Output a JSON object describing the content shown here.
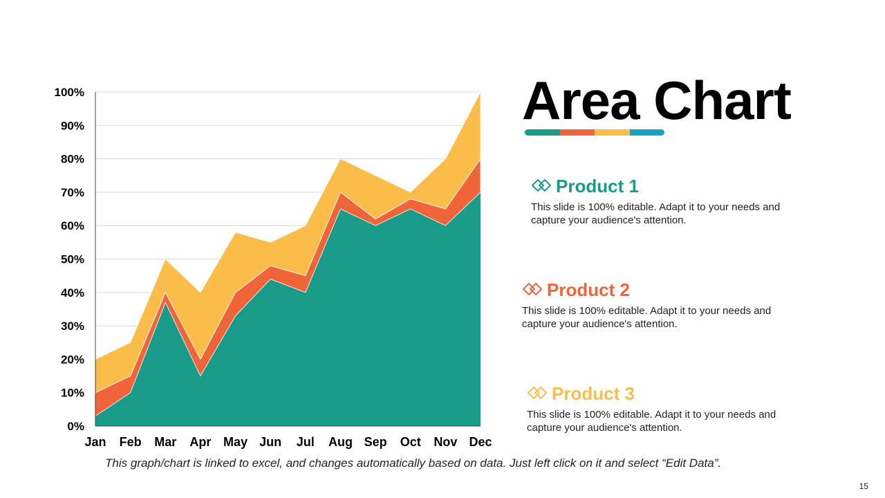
{
  "title": "Area Chart",
  "title_bar_colors": [
    "#1a9b89",
    "#f0643a",
    "#fbbd4a",
    "#15a3c1"
  ],
  "products": [
    {
      "name": "Product 1",
      "color": "#1a9b89",
      "icon": "diamond-pair-icon",
      "desc": "This slide is 100% editable. Adapt it to your needs and capture your audience's attention."
    },
    {
      "name": "Product 2",
      "color": "#f0643a",
      "icon": "diamond-pair-icon",
      "desc": "This slide is 100% editable. Adapt it to your needs and capture your audience's attention."
    },
    {
      "name": "Product 3",
      "color": "#fbbd4a",
      "icon": "diamond-pair-icon",
      "desc": "This slide is 100% editable. Adapt it to your needs and capture your audience's attention."
    }
  ],
  "note": "This graph/chart is linked to excel, and changes automatically based on data. Just left click on it and select “Edit Data”.",
  "page_number": "15",
  "chart_data": {
    "type": "area",
    "stacked": true,
    "categories": [
      "Jan",
      "Feb",
      "Mar",
      "Apr",
      "May",
      "Jun",
      "Jul",
      "Aug",
      "Sep",
      "Oct",
      "Nov",
      "Dec"
    ],
    "series": [
      {
        "name": "Product 1",
        "color": "#1a9b89",
        "values": [
          3,
          10,
          37,
          15,
          33,
          44,
          40,
          65,
          60,
          65,
          60,
          70
        ]
      },
      {
        "name": "Product 2",
        "color": "#f0643a",
        "values": [
          7,
          5,
          3,
          5,
          7,
          4,
          5,
          5,
          2,
          3,
          5,
          10
        ]
      },
      {
        "name": "Product 3",
        "color": "#fbbd4a",
        "values": [
          10,
          10,
          10,
          20,
          18,
          7,
          15,
          10,
          13,
          2,
          15,
          20
        ]
      }
    ],
    "yticks": [
      "0%",
      "10%",
      "20%",
      "30%",
      "40%",
      "50%",
      "60%",
      "70%",
      "80%",
      "90%",
      "100%"
    ],
    "ylim": [
      0,
      100
    ],
    "grid": true,
    "legend": "none"
  }
}
